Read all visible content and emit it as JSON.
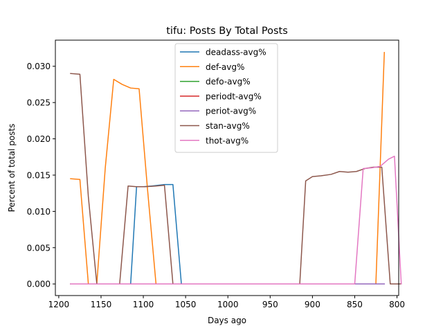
{
  "chart_data": {
    "type": "line",
    "title": "tifu: Posts By Total Posts",
    "xlabel": "Days ago",
    "ylabel": "Percent of total posts",
    "xlim": [
      1204,
      798
    ],
    "ylim": [
      -0.0016,
      0.0336
    ],
    "x_ticks": [
      1200,
      1150,
      1100,
      1050,
      1000,
      950,
      900,
      850,
      800
    ],
    "x_tick_labels": [
      "1200",
      "1150",
      "1100",
      "1050",
      "1000",
      "950",
      "900",
      "850",
      "800"
    ],
    "y_ticks": [
      0.0,
      0.005,
      0.01,
      0.015,
      0.02,
      0.025,
      0.03
    ],
    "y_tick_labels": [
      "0.000",
      "0.005",
      "0.010",
      "0.015",
      "0.020",
      "0.025",
      "0.030"
    ],
    "grid": false,
    "legend_position": "top-center",
    "series": [
      {
        "name": "deadass-avg%",
        "color": "#1f77b4",
        "points": [
          [
            1186,
            0
          ],
          [
            1175,
            0
          ],
          [
            1165,
            0
          ],
          [
            1155,
            0
          ],
          [
            1125,
            0
          ],
          [
            1115,
            0
          ],
          [
            1108,
            0.0134
          ],
          [
            1100,
            0.0134
          ],
          [
            1090,
            0.0135
          ],
          [
            1082,
            0.0136
          ],
          [
            1075,
            0.0137
          ],
          [
            1065,
            0.0137
          ],
          [
            1055,
            0
          ],
          [
            1000,
            0
          ],
          [
            950,
            0
          ],
          [
            900,
            0
          ],
          [
            850,
            0
          ],
          [
            815,
            0
          ]
        ]
      },
      {
        "name": "def-avg%",
        "color": "#ff7f0e",
        "points": [
          [
            1186,
            0.0145
          ],
          [
            1175,
            0.0144
          ],
          [
            1165,
            0
          ],
          [
            1155,
            0
          ],
          [
            1145,
            0.016
          ],
          [
            1135,
            0.0282
          ],
          [
            1125,
            0.0275
          ],
          [
            1115,
            0.027
          ],
          [
            1105,
            0.0269
          ],
          [
            1095,
            0.013
          ],
          [
            1085,
            0
          ],
          [
            1000,
            0
          ],
          [
            900,
            0
          ],
          [
            850,
            0
          ],
          [
            825,
            0
          ],
          [
            815,
            0.0319
          ]
        ]
      },
      {
        "name": "defo-avg%",
        "color": "#2ca02c",
        "points": [
          [
            1186,
            0
          ],
          [
            1100,
            0
          ],
          [
            1000,
            0
          ],
          [
            900,
            0
          ],
          [
            815,
            0
          ]
        ]
      },
      {
        "name": "periodt-avg%",
        "color": "#d62728",
        "points": [
          [
            1186,
            0
          ],
          [
            1100,
            0
          ],
          [
            1000,
            0
          ],
          [
            900,
            0
          ],
          [
            815,
            0
          ]
        ]
      },
      {
        "name": "periot-avg%",
        "color": "#9467bd",
        "points": [
          [
            1186,
            0
          ],
          [
            1100,
            0
          ],
          [
            1000,
            0
          ],
          [
            900,
            0
          ],
          [
            815,
            0
          ]
        ]
      },
      {
        "name": "stan-avg%",
        "color": "#8c564b",
        "points": [
          [
            1186,
            0.029
          ],
          [
            1175,
            0.0289
          ],
          [
            1165,
            0.012
          ],
          [
            1155,
            0
          ],
          [
            1128,
            0
          ],
          [
            1118,
            0.0135
          ],
          [
            1108,
            0.0134
          ],
          [
            1098,
            0.0134
          ],
          [
            1085,
            0.0135
          ],
          [
            1075,
            0.0136
          ],
          [
            1065,
            0
          ],
          [
            1000,
            0
          ],
          [
            915,
            0
          ],
          [
            908,
            0.0142
          ],
          [
            900,
            0.0148
          ],
          [
            890,
            0.0149
          ],
          [
            878,
            0.0151
          ],
          [
            868,
            0.0155
          ],
          [
            858,
            0.0154
          ],
          [
            848,
            0.0155
          ],
          [
            838,
            0.0159
          ],
          [
            828,
            0.0161
          ],
          [
            818,
            0.0161
          ],
          [
            808,
            0
          ],
          [
            795,
            0
          ]
        ]
      },
      {
        "name": "thot-avg%",
        "color": "#e377c2",
        "points": [
          [
            1186,
            0
          ],
          [
            1100,
            0
          ],
          [
            1000,
            0
          ],
          [
            900,
            0
          ],
          [
            850,
            0
          ],
          [
            840,
            0.0159
          ],
          [
            830,
            0.016
          ],
          [
            820,
            0.0162
          ],
          [
            810,
            0.0172
          ],
          [
            803,
            0.0176
          ],
          [
            795,
            0
          ]
        ]
      }
    ]
  }
}
